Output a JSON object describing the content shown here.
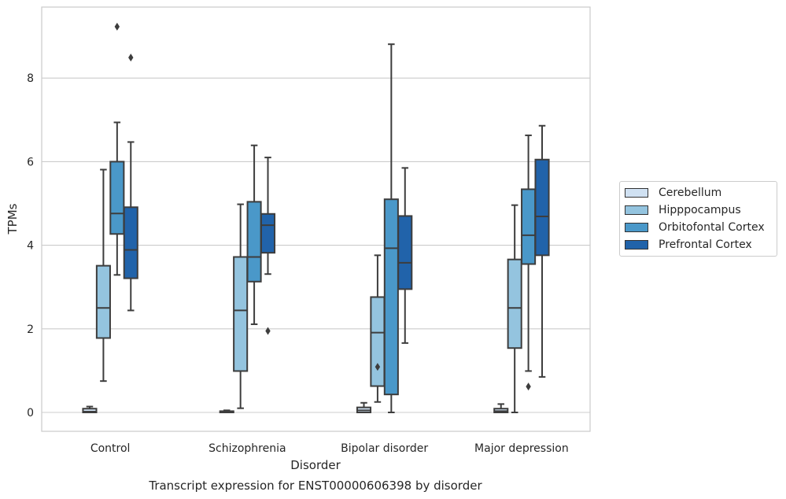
{
  "chart_data": {
    "type": "box",
    "title": "Transcript expression for ENST00000606398 by disorder",
    "xlabel": "Disorder",
    "ylabel": "TPMs",
    "ylim": [
      -0.45,
      9.7
    ],
    "yticks": [
      0,
      2,
      4,
      6,
      8
    ],
    "grid": "horizontal",
    "legend_position": "right",
    "categories": [
      "Control",
      "Schizophrenia",
      "Bipolar disorder",
      "Major depression"
    ],
    "series": [
      {
        "name": "Cerebellum",
        "color": "#d0e1f2",
        "boxes": [
          {
            "min": 0.0,
            "q1": 0.0,
            "median": 0.02,
            "q3": 0.09,
            "max": 0.14,
            "outliers": []
          },
          {
            "min": 0.0,
            "q1": 0.0,
            "median": 0.01,
            "q3": 0.03,
            "max": 0.05,
            "outliers": []
          },
          {
            "min": 0.0,
            "q1": 0.0,
            "median": 0.05,
            "q3": 0.12,
            "max": 0.23,
            "outliers": []
          },
          {
            "min": 0.0,
            "q1": 0.0,
            "median": 0.03,
            "q3": 0.09,
            "max": 0.2,
            "outliers": []
          }
        ]
      },
      {
        "name": "Hipppocampus",
        "color": "#94c4df",
        "boxes": [
          {
            "min": 0.75,
            "q1": 1.78,
            "median": 2.5,
            "q3": 3.51,
            "max": 5.81,
            "outliers": []
          },
          {
            "min": 0.1,
            "q1": 0.99,
            "median": 2.44,
            "q3": 3.72,
            "max": 4.98,
            "outliers": []
          },
          {
            "min": 0.25,
            "q1": 0.63,
            "median": 1.91,
            "q3": 2.76,
            "max": 3.76,
            "outliers": [
              1.09
            ]
          },
          {
            "min": 0.0,
            "q1": 1.54,
            "median": 2.5,
            "q3": 3.66,
            "max": 4.96,
            "outliers": []
          }
        ]
      },
      {
        "name": "Orbitofontal Cortex",
        "color": "#4a98c9",
        "boxes": [
          {
            "min": 3.29,
            "q1": 4.27,
            "median": 4.76,
            "q3": 6.0,
            "max": 6.94,
            "outliers": [
              9.23
            ]
          },
          {
            "min": 2.11,
            "q1": 3.13,
            "median": 3.72,
            "q3": 5.04,
            "max": 6.39,
            "outliers": []
          },
          {
            "min": 0.0,
            "q1": 0.43,
            "median": 3.93,
            "q3": 5.1,
            "max": 8.81,
            "outliers": []
          },
          {
            "min": 0.99,
            "q1": 3.55,
            "median": 4.24,
            "q3": 5.34,
            "max": 6.63,
            "outliers": [
              0.62
            ]
          }
        ]
      },
      {
        "name": "Prefrontal Cortex",
        "color": "#2163aa",
        "boxes": [
          {
            "min": 2.44,
            "q1": 3.21,
            "median": 3.89,
            "q3": 4.91,
            "max": 6.47,
            "outliers": [
              8.49
            ]
          },
          {
            "min": 3.31,
            "q1": 3.82,
            "median": 4.48,
            "q3": 4.75,
            "max": 6.1,
            "outliers": [
              1.95
            ]
          },
          {
            "min": 1.66,
            "q1": 2.95,
            "median": 3.58,
            "q3": 4.7,
            "max": 5.85,
            "outliers": []
          },
          {
            "min": 0.85,
            "q1": 3.76,
            "median": 4.69,
            "q3": 6.05,
            "max": 6.86,
            "outliers": []
          }
        ]
      }
    ]
  }
}
